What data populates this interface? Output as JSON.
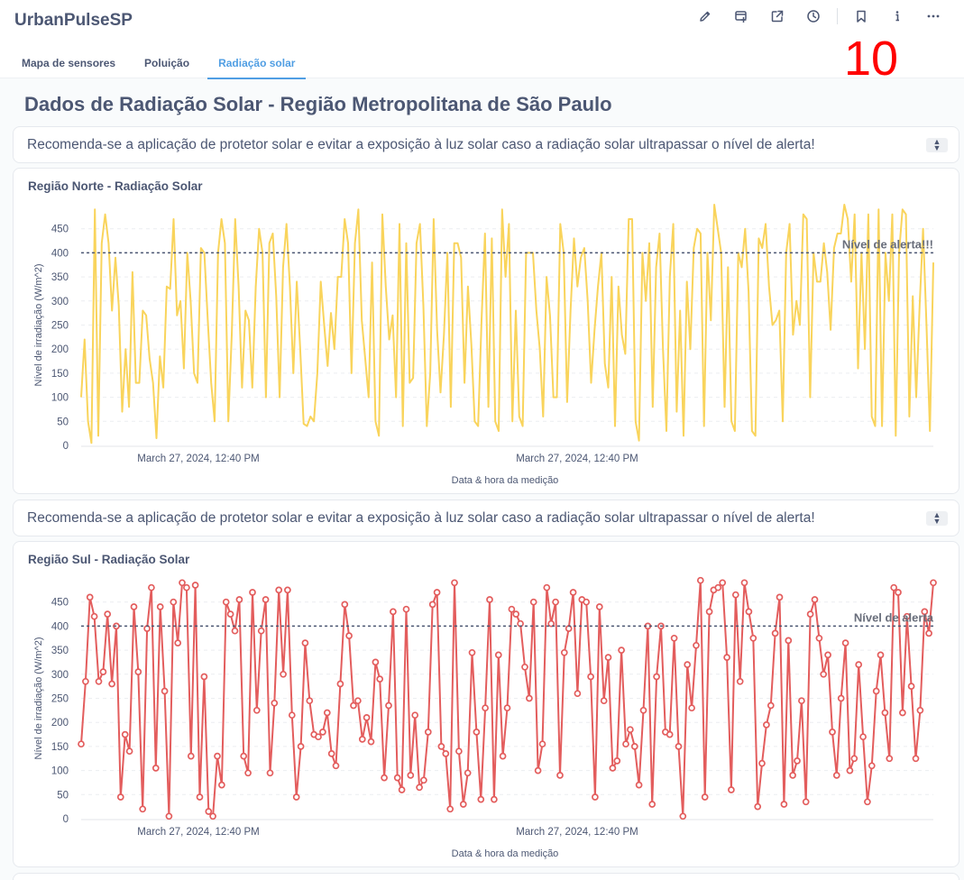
{
  "app": {
    "title": "UrbanPulseSP"
  },
  "toolbar": {
    "icons": [
      "pencil-icon",
      "add-to-dashboard-icon",
      "share-icon",
      "history-icon",
      "bookmark-icon",
      "info-icon",
      "more-icon"
    ]
  },
  "overlay_number": "10",
  "tabs": [
    {
      "label": "Mapa de sensores",
      "active": false
    },
    {
      "label": "Poluição",
      "active": false
    },
    {
      "label": "Radiação solar",
      "active": true
    }
  ],
  "page": {
    "title": "Dados de Radiação Solar - Região Metropolitana de São Paulo"
  },
  "notices": [
    "Recomenda-se a aplicação de protetor solar e evitar a exposição à luz solar caso a radiação solar ultrapassar o nível de alerta!",
    "Recomenda-se a aplicação de protetor solar e evitar a exposição à luz solar caso a radiação solar ultrapassar o nível de alerta!"
  ],
  "chart_data": [
    {
      "type": "line",
      "title": "Região Norte - Radiação Solar",
      "xlabel": "Data & hora da medição",
      "ylabel": "Nível de irradiação (W/m^2)",
      "ylim": [
        0,
        500
      ],
      "y_ticks": [
        0,
        50,
        100,
        150,
        200,
        250,
        300,
        350,
        400,
        450
      ],
      "x_tick_labels": [
        "March 27, 2024, 12:40 PM",
        "March 27, 2024, 12:40 PM"
      ],
      "reference_line": {
        "value": 400,
        "label": "Nível de alerta!!!"
      },
      "color": "#f9d45c",
      "markers": false,
      "grid": true,
      "series": [
        {
          "values": [
            100,
            220,
            50,
            5,
            490,
            20,
            420,
            480,
            420,
            280,
            390,
            290,
            70,
            200,
            80,
            360,
            130,
            130,
            280,
            270,
            180,
            130,
            15,
            185,
            120,
            330,
            325,
            470,
            270,
            300,
            160,
            400,
            300,
            150,
            130,
            410,
            400,
            260,
            130,
            50,
            400,
            470,
            420,
            50,
            230,
            470,
            330,
            120,
            280,
            260,
            120,
            330,
            450,
            400,
            100,
            420,
            440,
            310,
            100,
            370,
            460,
            330,
            150,
            340,
            200,
            45,
            40,
            60,
            50,
            150,
            340,
            250,
            165,
            275,
            200,
            350,
            350,
            470,
            420,
            150,
            420,
            490,
            260,
            180,
            100,
            380,
            50,
            20,
            480,
            330,
            220,
            270,
            100,
            460,
            40,
            420,
            130,
            140,
            420,
            460,
            290,
            40,
            150,
            470,
            240,
            110,
            230,
            400,
            80,
            420,
            420,
            390,
            130,
            330,
            210,
            50,
            40,
            260,
            440,
            80,
            430,
            50,
            30,
            490,
            350,
            460,
            50,
            280,
            60,
            40,
            400,
            400,
            400,
            280,
            200,
            60,
            350,
            270,
            100,
            100,
            460,
            400,
            90,
            280,
            430,
            330,
            390,
            410,
            300,
            130,
            240,
            330,
            400,
            170,
            120,
            350,
            40,
            330,
            230,
            190,
            470,
            470,
            50,
            10,
            400,
            300,
            420,
            80,
            370,
            440,
            200,
            30,
            350,
            460,
            70,
            280,
            20,
            340,
            200,
            410,
            450,
            440,
            40,
            400,
            260,
            500,
            450,
            400,
            80,
            370,
            50,
            30,
            400,
            370,
            450,
            320,
            30,
            20,
            430,
            410,
            460,
            330,
            250,
            260,
            280,
            50,
            400,
            460,
            230,
            300,
            250,
            480,
            470,
            100,
            400,
            340,
            340,
            420,
            360,
            240,
            410,
            440,
            440,
            500,
            470,
            340,
            480,
            160,
            400,
            200,
            480,
            60,
            40,
            490,
            40,
            400,
            300,
            480,
            20,
            400,
            490,
            480,
            60,
            310,
            100,
            290,
            450,
            250,
            30,
            380
          ]
        }
      ]
    },
    {
      "type": "line",
      "title": "Região Sul - Radiação Solar",
      "xlabel": "Data & hora da medição",
      "ylabel": "Nível de irradiação (W/m^2)",
      "ylim": [
        0,
        500
      ],
      "y_ticks": [
        0,
        50,
        100,
        150,
        200,
        250,
        300,
        350,
        400,
        450
      ],
      "x_tick_labels": [
        "March 27, 2024, 12:40 PM",
        "March 27, 2024, 12:40 PM"
      ],
      "reference_line": {
        "value": 400,
        "label": "Nível de alerta"
      },
      "color": "#e35d5d",
      "markers": true,
      "grid": true,
      "series": [
        {
          "values": [
            155,
            285,
            460,
            420,
            285,
            305,
            425,
            280,
            400,
            45,
            175,
            140,
            440,
            305,
            20,
            395,
            480,
            105,
            440,
            265,
            5,
            450,
            365,
            490,
            480,
            130,
            485,
            45,
            295,
            15,
            5,
            130,
            70,
            450,
            425,
            390,
            455,
            130,
            95,
            470,
            225,
            390,
            455,
            95,
            240,
            475,
            300,
            475,
            215,
            45,
            150,
            365,
            245,
            175,
            170,
            180,
            220,
            135,
            110,
            280,
            445,
            380,
            235,
            245,
            165,
            210,
            160,
            325,
            290,
            85,
            235,
            430,
            85,
            60,
            435,
            90,
            215,
            65,
            80,
            180,
            445,
            470,
            150,
            135,
            20,
            490,
            140,
            30,
            95,
            345,
            180,
            40,
            230,
            455,
            40,
            340,
            130,
            230,
            435,
            425,
            405,
            315,
            250,
            450,
            100,
            155,
            480,
            405,
            450,
            90,
            345,
            395,
            470,
            260,
            455,
            450,
            295,
            45,
            440,
            245,
            335,
            105,
            120,
            350,
            155,
            185,
            150,
            70,
            225,
            400,
            30,
            295,
            400,
            180,
            175,
            375,
            150,
            5,
            320,
            230,
            360,
            495,
            45,
            430,
            475,
            480,
            490,
            335,
            60,
            465,
            285,
            490,
            430,
            375,
            25,
            115,
            195,
            235,
            385,
            460,
            30,
            370,
            90,
            120,
            245,
            35,
            425,
            455,
            375,
            300,
            340,
            180,
            90,
            250,
            365,
            100,
            125,
            320,
            170,
            35,
            110,
            265,
            340,
            220,
            125,
            480,
            470,
            220,
            420,
            275,
            125,
            225,
            430,
            385,
            490
          ]
        }
      ]
    }
  ]
}
